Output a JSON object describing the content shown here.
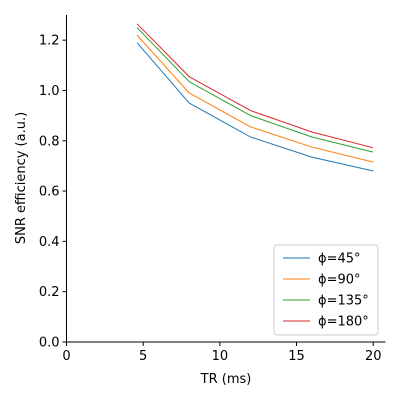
{
  "chart_data": {
    "type": "line",
    "title": "",
    "xlabel": "TR (ms)",
    "ylabel": "SNR efficiency (a.u.)",
    "xlim": [
      0,
      20.8
    ],
    "ylim": [
      0,
      1.3
    ],
    "x_ticks": [
      0,
      5,
      10,
      15,
      20
    ],
    "y_ticks": [
      0.0,
      0.2,
      0.4,
      0.6,
      0.8,
      1.0,
      1.2
    ],
    "x_tick_labels": [
      "0",
      "5",
      "10",
      "15",
      "20"
    ],
    "y_tick_labels": [
      "0.0",
      "0.2",
      "0.4",
      "0.6",
      "0.8",
      "1.0",
      "1.2"
    ],
    "grid": false,
    "legend_position": "bottom-right",
    "x": [
      4.6,
      8,
      12,
      16,
      20
    ],
    "series": [
      {
        "name": "ϕ=45°",
        "color": "#1f77b4",
        "values": [
          1.19,
          0.95,
          0.815,
          0.735,
          0.68
        ]
      },
      {
        "name": "ϕ=90°",
        "color": "#ff7f0e",
        "values": [
          1.22,
          0.99,
          0.855,
          0.775,
          0.715
        ]
      },
      {
        "name": "ϕ=135°",
        "color": "#2ca02c",
        "values": [
          1.25,
          1.035,
          0.9,
          0.815,
          0.755
        ]
      },
      {
        "name": "ϕ=180°",
        "color": "#d62728",
        "values": [
          1.265,
          1.055,
          0.92,
          0.835,
          0.772
        ]
      }
    ]
  }
}
